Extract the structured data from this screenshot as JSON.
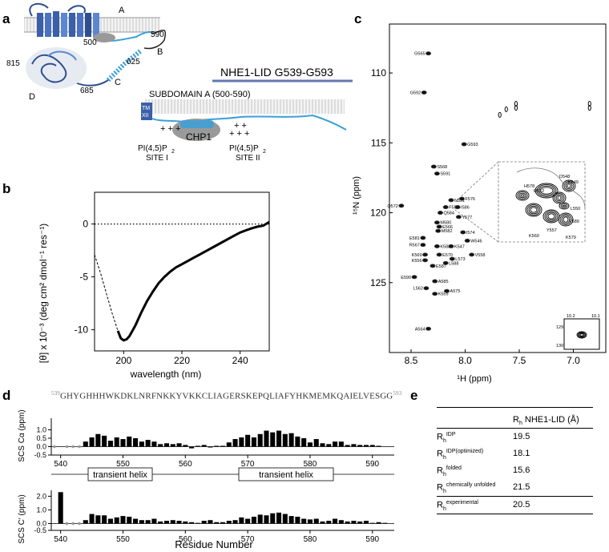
{
  "panels": {
    "a": "a",
    "b": "b",
    "c": "c",
    "d": "d",
    "e": "e"
  },
  "panel_a": {
    "label_A": "A",
    "label_B": "B",
    "label_C": "C",
    "label_D": "D",
    "n500": "500",
    "n590": "590",
    "n625": "625",
    "n685": "685",
    "n815": "815",
    "title": "NHE1-LID G539-G593",
    "subdomain": "SUBDOMAIN A (500-590)",
    "tm": "TM",
    "xii": "XII",
    "chp1": "CHP1",
    "site1_charges": "+ +  +",
    "site1_pip": "PI(4,5)P",
    "site1_sub": "2",
    "site1_label": "SITE I",
    "site2_charges": "+ +  +",
    "site2_charges_top": "+ +",
    "site2_pip": "PI(4,5)P",
    "site2_sub": "2",
    "site2_label": "SITE II"
  },
  "chart_data": [
    {
      "type": "line",
      "panel": "b",
      "xlabel": "wavelength (nm)",
      "ylabel": "[θ] x 10⁻³ (deg cm² dmol⁻¹ res⁻¹)",
      "xlim": [
        190,
        250
      ],
      "ylim": [
        -12,
        3
      ],
      "xticks": [
        200,
        220,
        240
      ],
      "yticks": [
        0,
        -5,
        -10
      ],
      "series": [
        {
          "x": [
            190,
            192,
            194,
            196,
            198,
            199,
            200,
            201,
            202,
            204,
            206,
            208,
            210,
            212,
            214,
            216,
            218,
            220,
            222,
            224,
            226,
            228,
            230,
            232,
            234,
            236,
            238,
            240,
            242,
            244,
            246,
            248,
            250
          ],
          "y": [
            -2.9,
            -4.6,
            -6.5,
            -8.4,
            -10.1,
            -10.8,
            -11.0,
            -10.9,
            -10.6,
            -9.6,
            -8.4,
            -7.3,
            -6.4,
            -5.6,
            -5.0,
            -4.5,
            -4.1,
            -3.8,
            -3.5,
            -3.2,
            -2.9,
            -2.6,
            -2.3,
            -2.0,
            -1.7,
            -1.4,
            -1.1,
            -0.8,
            -0.6,
            -0.4,
            -0.25,
            -0.15,
            0.2
          ]
        }
      ],
      "dashed_below_x": 198,
      "zero_line": "dotted"
    },
    {
      "type": "scatter",
      "panel": "c",
      "xlabel": "¹H  (ppm)",
      "ylabel": "¹⁵N  (ppm)",
      "xlim": [
        8.7,
        6.7
      ],
      "ylim": [
        130,
        106.5
      ],
      "xticks": [
        8.5,
        8.0,
        7.5,
        7.0
      ],
      "yticks": [
        110,
        115,
        120,
        125
      ],
      "peaks": [
        {
          "label": "G565",
          "x": 8.34,
          "y": 108.6
        },
        {
          "label": "G592",
          "x": 8.38,
          "y": 111.4
        },
        {
          "label": "G593",
          "x": 8.01,
          "y": 115.1
        },
        {
          "label": "S568",
          "x": 8.29,
          "y": 116.7
        },
        {
          "label": "S591",
          "x": 8.26,
          "y": 117.2
        },
        {
          "label": "N551",
          "x": 8.13,
          "y": 119.1
        },
        {
          "label": "F576",
          "x": 8.03,
          "y": 119.0
        },
        {
          "label": "F553",
          "x": 8.18,
          "y": 119.6
        },
        {
          "label": "I586",
          "x": 8.07,
          "y": 119.6
        },
        {
          "label": "Q572",
          "x": 8.59,
          "y": 119.5
        },
        {
          "label": "Q584",
          "x": 8.23,
          "y": 120.0
        },
        {
          "label": "Y577",
          "x": 8.06,
          "y": 120.3
        },
        {
          "label": "M580",
          "x": 8.26,
          "y": 120.7
        },
        {
          "label": "E566",
          "x": 8.24,
          "y": 121.0
        },
        {
          "label": "M582",
          "x": 8.25,
          "y": 121.3
        },
        {
          "label": "I574",
          "x": 8.02,
          "y": 121.4
        },
        {
          "label": "W546",
          "x": 7.98,
          "y": 122.0
        },
        {
          "label": "E581",
          "x": 8.39,
          "y": 121.8
        },
        {
          "label": "R567",
          "x": 8.39,
          "y": 122.3
        },
        {
          "label": "K583",
          "x": 8.26,
          "y": 122.4
        },
        {
          "label": "K547",
          "x": 8.13,
          "y": 122.4
        },
        {
          "label": "K569",
          "x": 8.37,
          "y": 123.0
        },
        {
          "label": "E570",
          "x": 8.24,
          "y": 123.0
        },
        {
          "label": "V558",
          "x": 7.94,
          "y": 123.0
        },
        {
          "label": "L573",
          "x": 8.12,
          "y": 123.3
        },
        {
          "label": "K556",
          "x": 8.37,
          "y": 123.4
        },
        {
          "label": "L588",
          "x": 8.18,
          "y": 123.6
        },
        {
          "label": "E587",
          "x": 8.3,
          "y": 123.8
        },
        {
          "label": "E590",
          "x": 8.47,
          "y": 124.6
        },
        {
          "label": "A585",
          "x": 8.28,
          "y": 124.9
        },
        {
          "label": "L562",
          "x": 8.36,
          "y": 125.4
        },
        {
          "label": "A575",
          "x": 8.17,
          "y": 125.6
        },
        {
          "label": "K559",
          "x": 8.28,
          "y": 125.8
        },
        {
          "label": "A564",
          "x": 8.34,
          "y": 128.3
        }
      ],
      "inset_labels": [
        "D548",
        "H578",
        "R552",
        "K549",
        "L550",
        "V589",
        "Y557",
        "K560",
        "K579"
      ],
      "inset2_ticks": {
        "x": [
          "10.2",
          "10.1"
        ],
        "y": [
          "129",
          "130"
        ]
      }
    },
    {
      "type": "bar",
      "panel": "d-top",
      "ylabel": "SCS Cα (ppm)",
      "ylim": [
        -0.5,
        1.5
      ],
      "yticks": [
        "1.0",
        "0.5",
        "0.0",
        "-0.5"
      ],
      "xlim": [
        539,
        593
      ],
      "xticks": [
        540,
        550,
        560,
        570,
        580,
        590
      ],
      "x": [
        539,
        540,
        541,
        542,
        543,
        544,
        545,
        546,
        547,
        548,
        549,
        550,
        551,
        552,
        553,
        554,
        555,
        556,
        557,
        558,
        559,
        560,
        561,
        562,
        563,
        564,
        565,
        566,
        567,
        568,
        569,
        570,
        571,
        572,
        573,
        574,
        575,
        576,
        577,
        578,
        579,
        580,
        581,
        582,
        583,
        584,
        585,
        586,
        587,
        588,
        589,
        590,
        591,
        592,
        593
      ],
      "values": [
        0,
        0,
        0,
        0,
        0,
        0.3,
        0.55,
        0.75,
        0.65,
        0.35,
        0.55,
        0.45,
        0.6,
        0.5,
        0.3,
        0.4,
        0.3,
        0.15,
        0.2,
        0.15,
        0.2,
        0.1,
        -0.1,
        0.05,
        0.1,
        -0.05,
        0.05,
        0.05,
        0.25,
        0.45,
        0.55,
        0.7,
        0.55,
        0.75,
        0.95,
        0.85,
        0.95,
        0.75,
        0.8,
        0.6,
        0.5,
        0.25,
        0.45,
        0.2,
        0.15,
        0.3,
        0.3,
        0.1,
        0.15,
        0.1,
        0.1,
        0.1,
        0.05,
        0,
        0
      ],
      "grey_points": [
        539,
        541,
        542,
        543
      ]
    },
    {
      "type": "bar",
      "panel": "d-bottom",
      "xlabel": "Residue Number",
      "ylabel": "SCS C′ (ppm)",
      "ylim": [
        -0.5,
        2.2
      ],
      "yticks": [
        "2.0",
        "1.0",
        "0.0",
        "-0.5"
      ],
      "xlim": [
        539,
        593
      ],
      "xticks": [
        540,
        550,
        560,
        570,
        580,
        590
      ],
      "x": [
        539,
        540,
        541,
        542,
        543,
        544,
        545,
        546,
        547,
        548,
        549,
        550,
        551,
        552,
        553,
        554,
        555,
        556,
        557,
        558,
        559,
        560,
        561,
        562,
        563,
        564,
        565,
        566,
        567,
        568,
        569,
        570,
        571,
        572,
        573,
        574,
        575,
        576,
        577,
        578,
        579,
        580,
        581,
        582,
        583,
        584,
        585,
        586,
        587,
        588,
        589,
        590,
        591,
        592,
        593
      ],
      "values": [
        0,
        2.3,
        0,
        0,
        0,
        0.25,
        0.7,
        0.6,
        0.6,
        0.35,
        0.45,
        0.55,
        0.5,
        0.35,
        0.25,
        0.25,
        0.35,
        0.15,
        0.2,
        0.25,
        0.2,
        0.15,
        0.1,
        0.05,
        0.2,
        0.25,
        0.1,
        0.1,
        0.2,
        0.25,
        0.45,
        0.35,
        0.5,
        0.65,
        0.6,
        0.75,
        0.8,
        0.7,
        0.55,
        0.5,
        0.35,
        0.3,
        0.35,
        0.15,
        0.2,
        0.35,
        0.25,
        0.15,
        0.2,
        0.15,
        0.2,
        0.05,
        0.1,
        0.05,
        0
      ],
      "grey_points": [
        541,
        542,
        543
      ]
    }
  ],
  "panel_d": {
    "seq_start": "539",
    "sequence": "GHYGHHHWKDKLNRFNKKYVKKCLIAGERSKEPQLIAFYHKMEMKQAIELVESGG",
    "seq_end": "593",
    "helix1": "transient helix",
    "helix2": "transient helix"
  },
  "panel_e": {
    "header": "NHE1-LID (Å)",
    "rows": [
      {
        "sup": "IDP",
        "value": "19.5"
      },
      {
        "sup": "IDP(optimized)",
        "value": "18.1"
      },
      {
        "sup": "folded",
        "value": "15.6"
      },
      {
        "sup": "chemically  unfolded",
        "value": "21.5"
      },
      {
        "sup": "experimental",
        "value": "20.5"
      }
    ],
    "r": "R",
    "h": "h"
  }
}
